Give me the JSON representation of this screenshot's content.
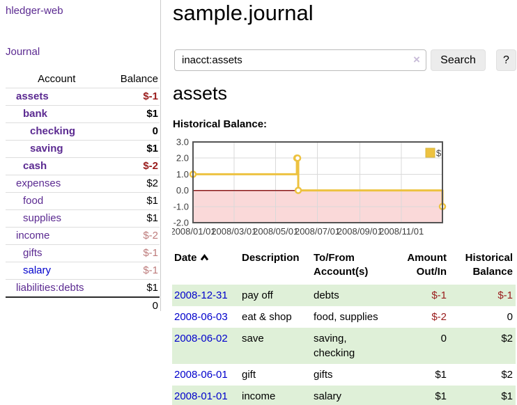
{
  "app": {
    "title": "hledger-web"
  },
  "sidebar": {
    "journal_link": "Journal",
    "accounts_table": {
      "headers": {
        "account": "Account",
        "balance": "Balance"
      },
      "rows": [
        {
          "name": "assets",
          "balance": "$-1",
          "depth": 1,
          "bold": true,
          "balance_color": "negative-strong"
        },
        {
          "name": "bank",
          "balance": "$1",
          "depth": 2,
          "bold": true,
          "balance_color": "normal"
        },
        {
          "name": "checking",
          "balance": "0",
          "depth": 3,
          "bold": true,
          "balance_color": "normal"
        },
        {
          "name": "saving",
          "balance": "$1",
          "depth": 3,
          "bold": true,
          "balance_color": "normal"
        },
        {
          "name": "cash",
          "balance": "$-2",
          "depth": 2,
          "bold": true,
          "balance_color": "negative-strong"
        },
        {
          "name": "expenses",
          "balance": "$2",
          "depth": 1,
          "bold": false,
          "balance_color": "normal"
        },
        {
          "name": "food",
          "balance": "$1",
          "depth": 2,
          "bold": false,
          "balance_color": "normal"
        },
        {
          "name": "supplies",
          "balance": "$1",
          "depth": 2,
          "bold": false,
          "balance_color": "normal"
        },
        {
          "name": "income",
          "balance": "$-2",
          "depth": 1,
          "bold": false,
          "balance_color": "negative-soft"
        },
        {
          "name": "gifts",
          "balance": "$-1",
          "depth": 2,
          "bold": false,
          "balance_color": "negative-soft"
        },
        {
          "name": "salary",
          "balance": "$-1",
          "depth": 2,
          "bold": false,
          "balance_color": "negative-soft",
          "link_color": "blue"
        },
        {
          "name": "liabilities:debts",
          "balance": "$1",
          "depth": 1,
          "bold": false,
          "balance_color": "normal"
        }
      ],
      "total": "0"
    }
  },
  "header": {
    "title": "sample.journal"
  },
  "search": {
    "value": "inacct:assets",
    "clear_icon": "×",
    "button": "Search",
    "help_button": "?"
  },
  "account_page": {
    "title": "assets",
    "chart_label": "Historical Balance:"
  },
  "chart_data": {
    "type": "line",
    "style": "step",
    "title": "Historical Balance:",
    "series": [
      {
        "name": "$",
        "color": "#edc240",
        "points": [
          {
            "date": "2008-01-01",
            "value": 1
          },
          {
            "date": "2008-06-01",
            "value": 2
          },
          {
            "date": "2008-06-02",
            "value": 2
          },
          {
            "date": "2008-06-03",
            "value": 0
          },
          {
            "date": "2008-12-31",
            "value": -1
          }
        ]
      }
    ],
    "x_range": [
      "2008-01-01",
      "2008-12-31"
    ],
    "ylim": [
      -2,
      3
    ],
    "y_ticks": [
      "3.0",
      "2.0",
      "1.0",
      "0.0",
      "-1.0",
      "-2.0"
    ],
    "x_ticks": [
      "2008/01/01",
      "2008/03/01",
      "2008/05/01",
      "2008/07/01",
      "2008/09/01",
      "2008/11/01"
    ],
    "legend": {
      "label": "$",
      "position": "top-right"
    },
    "grid": true,
    "negative_region_color": "#fad9d9",
    "zero_line_color": "#8b1a1a"
  },
  "transactions": {
    "sort": {
      "column": "date",
      "direction": "ascending"
    },
    "headers": {
      "date": "Date",
      "description": "Description",
      "account": "To/From Account(s)",
      "amount": "Amount Out/In",
      "balance": "Historical Balance"
    },
    "rows": [
      {
        "date": "2008-12-31",
        "description": "pay off",
        "accounts_lines": [
          "debts"
        ],
        "amount": "$-1",
        "amount_negative": true,
        "balance": "$-1",
        "balance_negative": true
      },
      {
        "date": "2008-06-03",
        "description": "eat & shop",
        "accounts_lines": [
          "food, supplies"
        ],
        "amount": "$-2",
        "amount_negative": true,
        "balance": "0",
        "balance_negative": false
      },
      {
        "date": "2008-06-02",
        "description": "save",
        "accounts_lines": [
          "saving,",
          "checking"
        ],
        "amount": "0",
        "amount_negative": false,
        "balance": "$2",
        "balance_negative": false
      },
      {
        "date": "2008-06-01",
        "description": "gift",
        "accounts_lines": [
          "gifts"
        ],
        "amount": "$1",
        "amount_negative": false,
        "balance": "$2",
        "balance_negative": false
      },
      {
        "date": "2008-01-01",
        "description": "income",
        "accounts_lines": [
          "salary"
        ],
        "amount": "$1",
        "amount_negative": false,
        "balance": "$1",
        "balance_negative": false
      }
    ]
  },
  "colors": {
    "link_purple": "#5b2a91",
    "link_blue": "#0000cc",
    "negative_strong": "#991b1b",
    "negative_soft": "#bd7b7b",
    "row_green": "#dff0d8",
    "series_gold": "#edc240",
    "negative_region": "#fad9d9",
    "zero_line": "#8b1a1a",
    "plot_border": "#545454"
  }
}
